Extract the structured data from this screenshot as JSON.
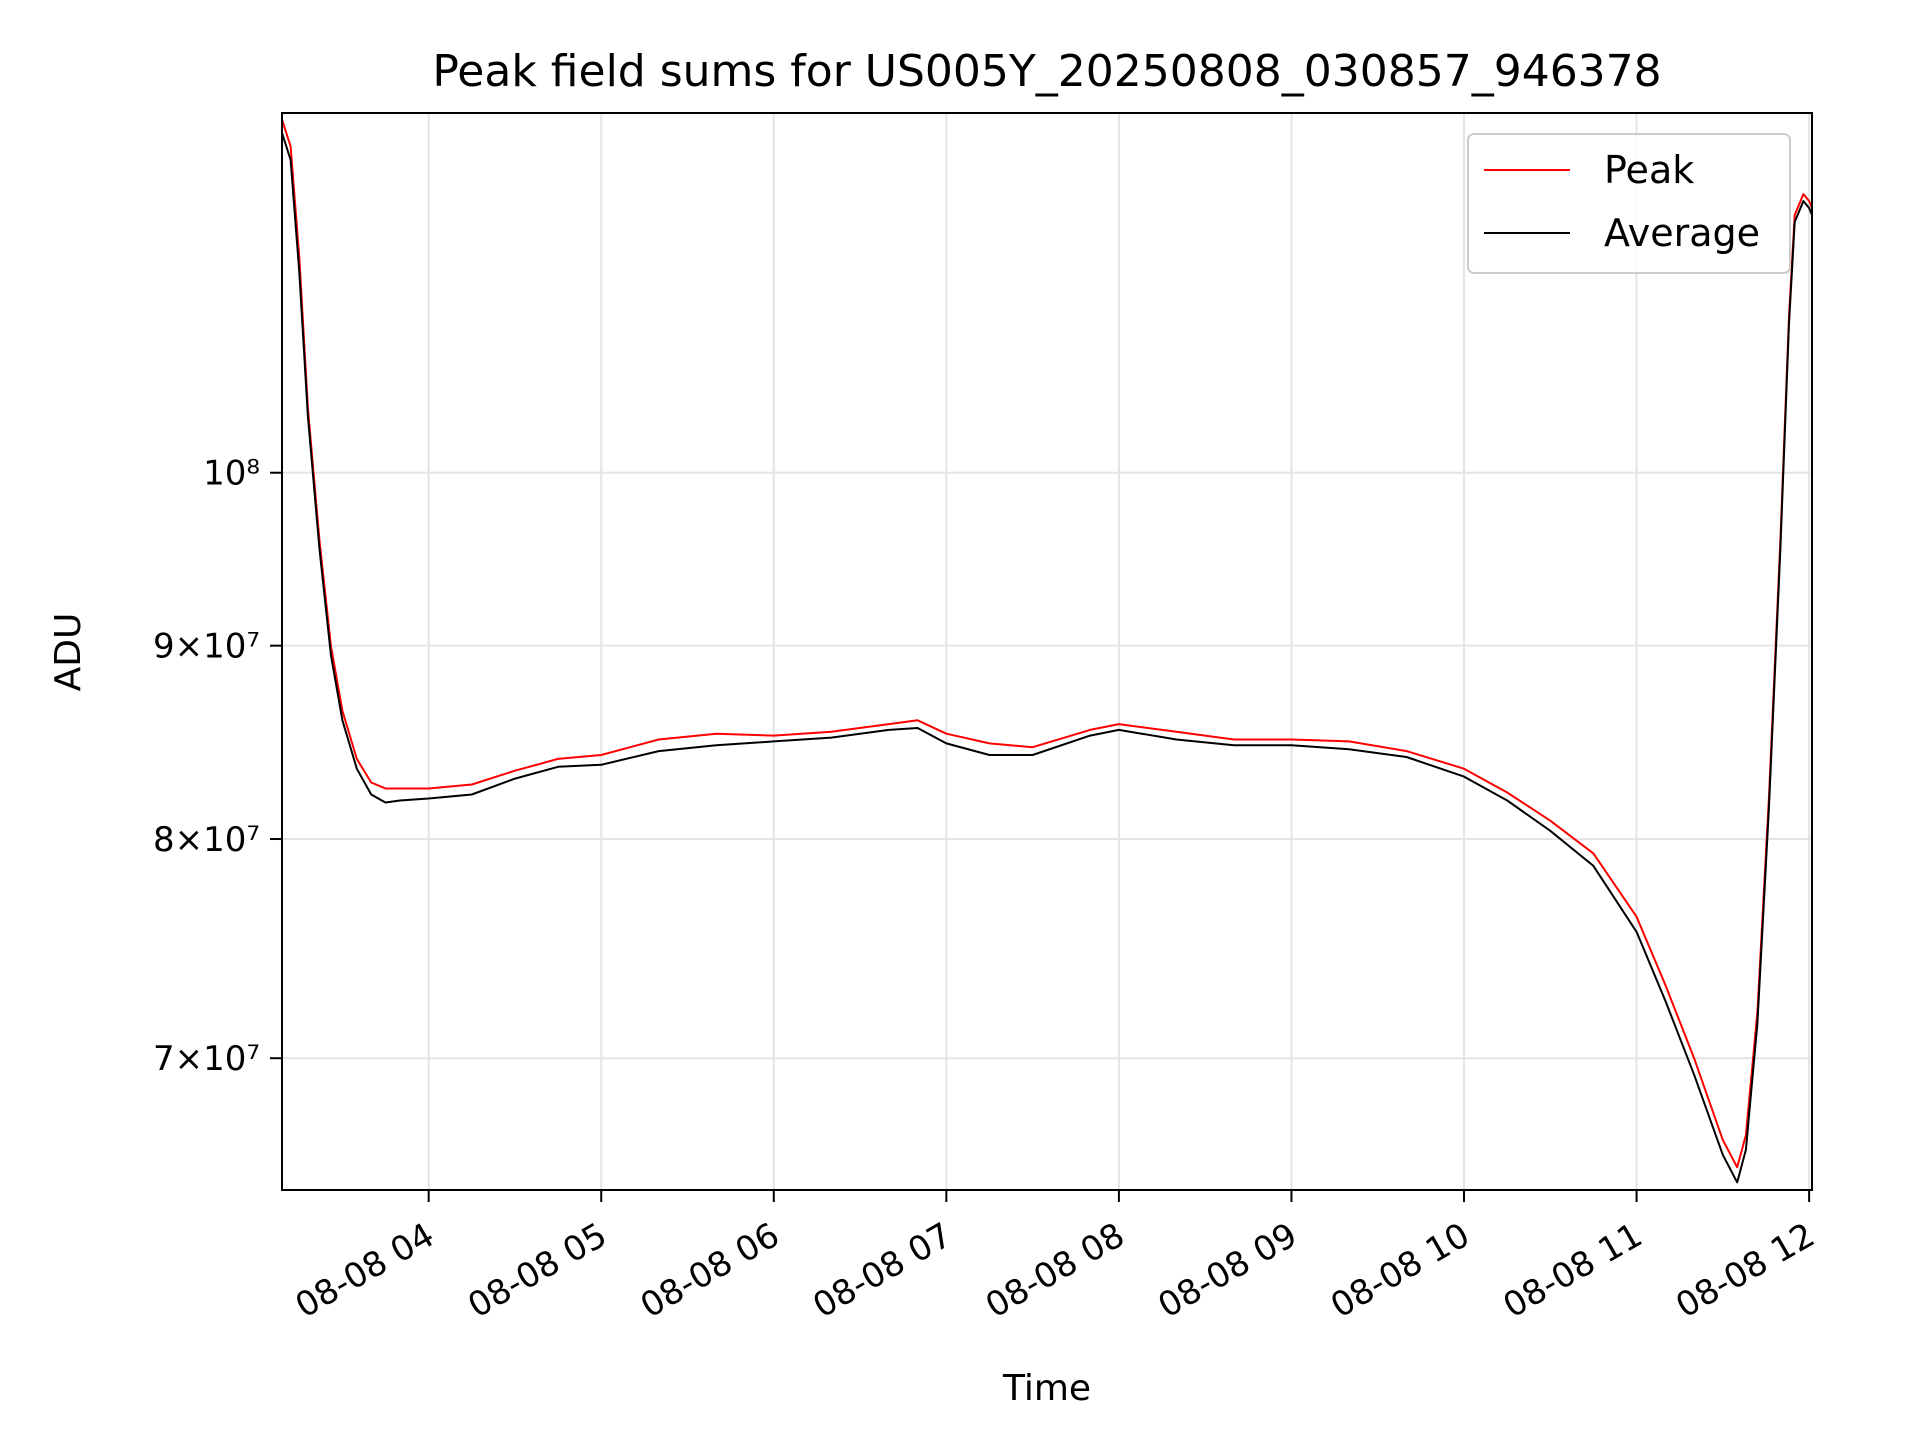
{
  "chart_data": {
    "type": "line",
    "title": "Peak field sums for US005Y_20250808_030857_946378",
    "xlabel": "Time",
    "ylabel": "ADU",
    "y_scale": "log",
    "grid": true,
    "legend_position": "top-right",
    "xlim": [
      "2025-08-08 03:09",
      "2025-08-08 12:01"
    ],
    "ylim": [
      64600000,
      124500000
    ],
    "x_ticks": [
      {
        "value": "2025-08-08 04:00",
        "label": "08-08 04"
      },
      {
        "value": "2025-08-08 05:00",
        "label": "08-08 05"
      },
      {
        "value": "2025-08-08 06:00",
        "label": "08-08 06"
      },
      {
        "value": "2025-08-08 07:00",
        "label": "08-08 07"
      },
      {
        "value": "2025-08-08 08:00",
        "label": "08-08 08"
      },
      {
        "value": "2025-08-08 09:00",
        "label": "08-08 09"
      },
      {
        "value": "2025-08-08 10:00",
        "label": "08-08 10"
      },
      {
        "value": "2025-08-08 11:00",
        "label": "08-08 11"
      },
      {
        "value": "2025-08-08 12:00",
        "label": "08-08 12"
      }
    ],
    "y_ticks": [
      {
        "value": 70000000,
        "label": "7×10⁷"
      },
      {
        "value": 80000000,
        "label": "8×10⁷"
      },
      {
        "value": 90000000,
        "label": "9×10⁷"
      },
      {
        "value": 100000000,
        "label": "10⁸"
      }
    ],
    "series": [
      {
        "name": "Peak",
        "color": "#ff0000",
        "x": [
          "2025-08-08 03:09",
          "2025-08-08 03:12",
          "2025-08-08 03:15",
          "2025-08-08 03:18",
          "2025-08-08 03:22",
          "2025-08-08 03:26",
          "2025-08-08 03:30",
          "2025-08-08 03:35",
          "2025-08-08 03:40",
          "2025-08-08 03:45",
          "2025-08-08 03:50",
          "2025-08-08 04:00",
          "2025-08-08 04:15",
          "2025-08-08 04:30",
          "2025-08-08 04:45",
          "2025-08-08 05:00",
          "2025-08-08 05:20",
          "2025-08-08 05:40",
          "2025-08-08 06:00",
          "2025-08-08 06:20",
          "2025-08-08 06:40",
          "2025-08-08 06:50",
          "2025-08-08 07:00",
          "2025-08-08 07:15",
          "2025-08-08 07:30",
          "2025-08-08 07:50",
          "2025-08-08 08:00",
          "2025-08-08 08:20",
          "2025-08-08 08:40",
          "2025-08-08 09:00",
          "2025-08-08 09:20",
          "2025-08-08 09:40",
          "2025-08-08 10:00",
          "2025-08-08 10:15",
          "2025-08-08 10:30",
          "2025-08-08 10:45",
          "2025-08-08 11:00",
          "2025-08-08 11:10",
          "2025-08-08 11:20",
          "2025-08-08 11:30",
          "2025-08-08 11:35",
          "2025-08-08 11:38",
          "2025-08-08 11:42",
          "2025-08-08 11:46",
          "2025-08-08 11:50",
          "2025-08-08 11:53",
          "2025-08-08 11:55",
          "2025-08-08 11:58",
          "2025-08-08 12:00",
          "2025-08-08 12:01"
        ],
        "values": [
          124000000,
          122000000,
          114000000,
          104000000,
          96000000,
          90000000,
          86500000,
          84000000,
          82800000,
          82500000,
          82500000,
          82500000,
          82700000,
          83400000,
          84000000,
          84200000,
          85000000,
          85300000,
          85200000,
          85400000,
          85800000,
          86000000,
          85300000,
          84800000,
          84600000,
          85500000,
          85800000,
          85400000,
          85000000,
          85000000,
          84900000,
          84400000,
          83500000,
          82300000,
          80900000,
          79300000,
          76300000,
          73200000,
          70000000,
          66600000,
          65500000,
          66800000,
          72000000,
          82000000,
          96000000,
          110000000,
          117000000,
          118500000,
          118000000,
          117500000
        ]
      },
      {
        "name": "Average",
        "color": "#000000",
        "x": [
          "2025-08-08 03:09",
          "2025-08-08 03:12",
          "2025-08-08 03:15",
          "2025-08-08 03:18",
          "2025-08-08 03:22",
          "2025-08-08 03:26",
          "2025-08-08 03:30",
          "2025-08-08 03:35",
          "2025-08-08 03:40",
          "2025-08-08 03:45",
          "2025-08-08 03:50",
          "2025-08-08 04:00",
          "2025-08-08 04:15",
          "2025-08-08 04:30",
          "2025-08-08 04:45",
          "2025-08-08 05:00",
          "2025-08-08 05:20",
          "2025-08-08 05:40",
          "2025-08-08 06:00",
          "2025-08-08 06:20",
          "2025-08-08 06:40",
          "2025-08-08 06:50",
          "2025-08-08 07:00",
          "2025-08-08 07:15",
          "2025-08-08 07:30",
          "2025-08-08 07:50",
          "2025-08-08 08:00",
          "2025-08-08 08:20",
          "2025-08-08 08:40",
          "2025-08-08 09:00",
          "2025-08-08 09:20",
          "2025-08-08 09:40",
          "2025-08-08 10:00",
          "2025-08-08 10:15",
          "2025-08-08 10:30",
          "2025-08-08 10:45",
          "2025-08-08 11:00",
          "2025-08-08 11:10",
          "2025-08-08 11:20",
          "2025-08-08 11:30",
          "2025-08-08 11:35",
          "2025-08-08 11:38",
          "2025-08-08 11:42",
          "2025-08-08 11:46",
          "2025-08-08 11:50",
          "2025-08-08 11:53",
          "2025-08-08 11:55",
          "2025-08-08 11:58",
          "2025-08-08 12:00",
          "2025-08-08 12:01"
        ],
        "values": [
          123000000,
          121000000,
          113000000,
          103500000,
          95500000,
          89500000,
          86000000,
          83500000,
          82200000,
          81800000,
          81900000,
          82000000,
          82200000,
          83000000,
          83600000,
          83700000,
          84400000,
          84700000,
          84900000,
          85100000,
          85500000,
          85600000,
          84800000,
          84200000,
          84200000,
          85200000,
          85500000,
          85000000,
          84700000,
          84700000,
          84500000,
          84100000,
          83100000,
          81900000,
          80400000,
          78700000,
          75600000,
          72500000,
          69300000,
          66000000,
          64900000,
          66200000,
          71500000,
          81500000,
          95500000,
          109500000,
          116500000,
          118000000,
          117500000,
          117000000
        ]
      }
    ]
  }
}
